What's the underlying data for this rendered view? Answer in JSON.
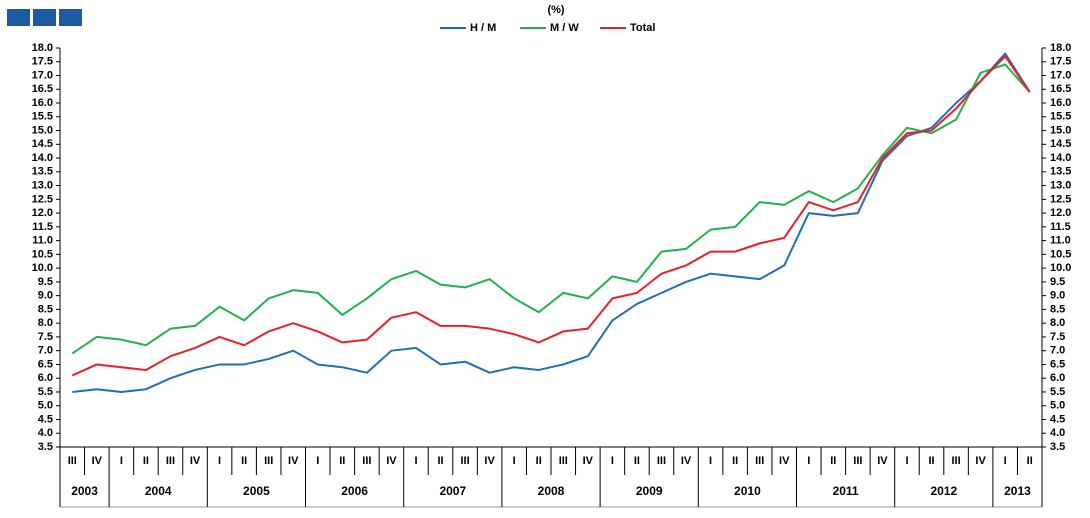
{
  "chart_data": {
    "type": "line",
    "title": "(%)",
    "categories": [
      "III",
      "IV",
      "I",
      "II",
      "III",
      "IV",
      "I",
      "II",
      "III",
      "IV",
      "I",
      "II",
      "III",
      "IV",
      "I",
      "II",
      "III",
      "IV",
      "I",
      "II",
      "III",
      "IV",
      "I",
      "II",
      "III",
      "IV",
      "I",
      "II",
      "III",
      "IV",
      "I",
      "II",
      "III",
      "IV",
      "I",
      "II",
      "III",
      "IV",
      "I",
      "II"
    ],
    "years": [
      "2003",
      "2004",
      "2005",
      "2006",
      "2007",
      "2008",
      "2009",
      "2010",
      "2011",
      "2012",
      "2013"
    ],
    "series": [
      {
        "name": "H / M",
        "color": "#1f6fb4",
        "values": [
          5.5,
          5.6,
          5.5,
          5.6,
          6.0,
          6.3,
          6.5,
          6.5,
          6.7,
          7.0,
          6.5,
          6.4,
          6.2,
          7.0,
          7.1,
          6.5,
          6.6,
          6.2,
          6.4,
          6.3,
          6.5,
          6.8,
          8.1,
          8.7,
          9.1,
          9.5,
          9.8,
          9.7,
          9.6,
          10.1,
          12.0,
          11.9,
          12.0,
          13.9,
          14.8,
          15.1,
          16.0,
          16.8,
          17.8,
          16.4
        ]
      },
      {
        "name": "M / W",
        "color": "#22b14c",
        "values": [
          6.9,
          7.5,
          7.4,
          7.2,
          7.8,
          7.9,
          8.6,
          8.1,
          8.9,
          9.2,
          9.1,
          8.3,
          8.9,
          9.6,
          9.9,
          9.4,
          9.3,
          9.6,
          8.9,
          8.4,
          9.1,
          8.9,
          9.7,
          9.5,
          10.6,
          10.7,
          11.4,
          11.5,
          12.4,
          12.3,
          12.8,
          12.4,
          12.9,
          14.1,
          15.1,
          14.9,
          15.4,
          17.1,
          17.4,
          16.4
        ]
      },
      {
        "name": "Total",
        "color": "#e8202a",
        "values": [
          6.1,
          6.5,
          6.4,
          6.3,
          6.8,
          7.1,
          7.5,
          7.2,
          7.7,
          8.0,
          7.7,
          7.3,
          7.4,
          8.2,
          8.4,
          7.9,
          7.9,
          7.8,
          7.6,
          7.3,
          7.7,
          7.8,
          8.9,
          9.1,
          9.8,
          10.1,
          10.6,
          10.6,
          10.9,
          11.1,
          12.4,
          12.1,
          12.4,
          14.0,
          14.9,
          15.0,
          15.8,
          16.8,
          17.7,
          16.4
        ]
      }
    ],
    "ylim": [
      3.5,
      18.0
    ],
    "yticks": [
      3.5,
      {
        "value": 4,
        "label": "4.0"
      },
      4.5,
      {
        "value": 5,
        "label": "5.0"
      },
      5.5,
      {
        "value": 6,
        "label": "6.0"
      },
      6.5,
      {
        "value": 7,
        "label": "7.0"
      },
      7.5,
      {
        "value": 8,
        "label": "8.0"
      },
      8.5,
      {
        "value": 9,
        "label": "9.0"
      },
      9.5,
      {
        "value": 10,
        "label": "10.0"
      },
      10.5,
      {
        "value": 11,
        "label": "11.0"
      },
      11.5,
      {
        "value": 12,
        "label": "12.0"
      },
      12.5,
      {
        "value": 13,
        "label": "13.0"
      },
      13.5,
      {
        "value": 14,
        "label": "14.0"
      },
      14.5,
      {
        "value": 15,
        "label": "15.0"
      },
      15.5,
      {
        "value": 16,
        "label": "16.0"
      },
      16.5,
      {
        "value": 17,
        "label": "17.0"
      },
      17.5,
      {
        "value": 18,
        "label": "18.0"
      }
    ],
    "grid": false,
    "mirror_y_axis": true
  }
}
